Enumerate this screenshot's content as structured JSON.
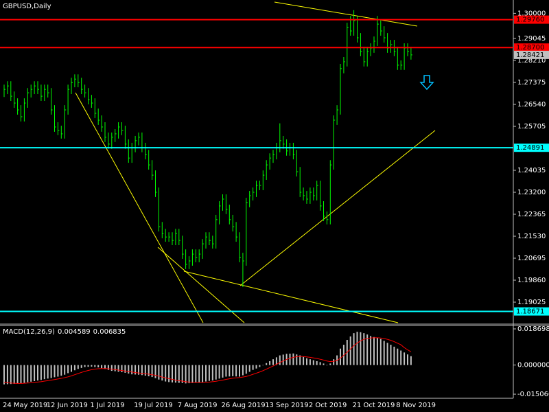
{
  "chart_data": [
    {
      "type": "hlc",
      "title": "GBPUSD,Daily",
      "color": "#00ff00",
      "categories": [
        "24 May 2019",
        null,
        null,
        null,
        null,
        null,
        null,
        null,
        null,
        null,
        null,
        null,
        null,
        "12 Jun 2019",
        null,
        null,
        null,
        null,
        null,
        null,
        null,
        null,
        null,
        null,
        null,
        null,
        "1 Jul 2019",
        null,
        null,
        null,
        null,
        null,
        null,
        null,
        null,
        null,
        null,
        null,
        null,
        "19 Jul 2019",
        null,
        null,
        null,
        null,
        null,
        null,
        null,
        null,
        null,
        null,
        null,
        null,
        "7 Aug 2019",
        null,
        null,
        null,
        null,
        null,
        null,
        null,
        null,
        null,
        null,
        null,
        null,
        "26 Aug 2019",
        null,
        null,
        null,
        null,
        null,
        null,
        null,
        null,
        null,
        null,
        null,
        null,
        "13 Sep 2019",
        null,
        null,
        null,
        null,
        null,
        null,
        null,
        null,
        null,
        null,
        null,
        null,
        "2 Oct 2019",
        null,
        null,
        null,
        null,
        null,
        null,
        null,
        null,
        null,
        null,
        null,
        null,
        "21 Oct 2019",
        null,
        null,
        null,
        null,
        null,
        null,
        null,
        null,
        null,
        null,
        null,
        null,
        "8 Nov 2019",
        null,
        null,
        null,
        null
      ],
      "high": [
        1.2729,
        1.2742,
        1.2742,
        1.2703,
        1.2677,
        1.2651,
        1.2677,
        1.2716,
        1.2729,
        1.2742,
        1.2742,
        1.2729,
        1.2729,
        1.2729,
        1.2716,
        1.2651,
        1.2586,
        1.2573,
        1.2651,
        1.2729,
        1.2755,
        1.2768,
        1.2768,
        1.2755,
        1.2729,
        1.2716,
        1.269,
        1.2677,
        1.2638,
        1.2612,
        1.2586,
        1.2547,
        1.2547,
        1.256,
        1.2586,
        1.2586,
        1.2573,
        1.2521,
        1.2508,
        1.2534,
        1.2547,
        1.2547,
        1.2508,
        1.2481,
        1.2442,
        1.2403,
        1.2338,
        1.2207,
        1.2181,
        1.2168,
        1.2168,
        1.2181,
        1.2181,
        1.2155,
        1.2103,
        1.2077,
        1.2103,
        1.2103,
        1.2103,
        1.2142,
        1.2168,
        1.2168,
        1.2155,
        1.2234,
        1.2286,
        1.2312,
        1.2312,
        1.2273,
        1.2234,
        1.2207,
        1.2168,
        1.209,
        1.2299,
        1.2325,
        1.2338,
        1.2364,
        1.2364,
        1.2403,
        1.2442,
        1.2468,
        1.2481,
        1.2508,
        1.2582,
        1.2534,
        1.2521,
        1.2508,
        1.2508,
        1.2481,
        1.2416,
        1.2338,
        1.2325,
        1.2338,
        1.2338,
        1.2364,
        1.2364,
        1.2286,
        1.2247,
        1.2442,
        1.2612,
        1.2651,
        1.2808,
        1.2834,
        1.2964,
        1.299,
        1.3012,
        1.299,
        1.2925,
        1.2873,
        1.2873,
        1.2886,
        1.2912,
        1.299,
        1.2977,
        1.2951,
        1.2925,
        1.2899,
        1.2899,
        1.2873,
        1.2821,
        1.2886,
        1.2886,
        1.2873
      ],
      "low": [
        1.2682,
        1.2693,
        1.2667,
        1.2641,
        1.2615,
        1.2589,
        1.2589,
        1.2641,
        1.268,
        1.2693,
        1.2693,
        1.2667,
        1.2667,
        1.268,
        1.2615,
        1.255,
        1.2537,
        1.2524,
        1.2524,
        1.2615,
        1.2693,
        1.2719,
        1.2719,
        1.2693,
        1.268,
        1.2654,
        1.2641,
        1.2602,
        1.2576,
        1.255,
        1.2511,
        1.2485,
        1.2485,
        1.2511,
        1.2524,
        1.2537,
        1.2485,
        1.2432,
        1.2432,
        1.2472,
        1.2498,
        1.2472,
        1.2445,
        1.2406,
        1.2367,
        1.2302,
        1.2171,
        1.2145,
        1.2132,
        1.2132,
        1.2119,
        1.2119,
        1.2119,
        1.2067,
        1.2028,
        1.2028,
        1.2041,
        1.2054,
        1.2054,
        1.2067,
        1.2106,
        1.2119,
        1.2106,
        1.2106,
        1.2198,
        1.225,
        1.2237,
        1.2198,
        1.2171,
        1.2132,
        1.2054,
        1.196,
        1.2041,
        1.2263,
        1.2289,
        1.2302,
        1.2328,
        1.2328,
        1.2367,
        1.2406,
        1.2432,
        1.2445,
        1.2472,
        1.2485,
        1.2459,
        1.2459,
        1.2445,
        1.238,
        1.2302,
        1.2289,
        1.2276,
        1.2276,
        1.2289,
        1.2289,
        1.225,
        1.2211,
        1.2198,
        1.2198,
        1.2406,
        1.2576,
        1.2615,
        1.2772,
        1.2798,
        1.2915,
        1.2915,
        1.2889,
        1.2837,
        1.2798,
        1.2798,
        1.2837,
        1.285,
        1.2876,
        1.2915,
        1.2889,
        1.285,
        1.285,
        1.2837,
        1.2785,
        1.2785,
        1.2785,
        1.2837,
        1.2824
      ],
      "close": [
        1.2711,
        1.2724,
        1.2685,
        1.2659,
        1.2633,
        1.2607,
        1.2659,
        1.2698,
        1.2711,
        1.2724,
        1.2711,
        1.2685,
        1.2711,
        1.2698,
        1.2633,
        1.2568,
        1.2555,
        1.2542,
        1.2633,
        1.2711,
        1.2737,
        1.275,
        1.2737,
        1.2711,
        1.2698,
        1.2672,
        1.2659,
        1.262,
        1.2594,
        1.2568,
        1.2529,
        1.2503,
        1.2529,
        1.2542,
        1.2568,
        1.2555,
        1.2503,
        1.245,
        1.249,
        1.2516,
        1.2529,
        1.249,
        1.2463,
        1.2424,
        1.2385,
        1.232,
        1.2189,
        1.2163,
        1.215,
        1.215,
        1.2137,
        1.2163,
        1.2137,
        1.2085,
        1.2046,
        1.2059,
        1.2085,
        1.2072,
        1.2085,
        1.2124,
        1.215,
        1.2137,
        1.2124,
        1.2216,
        1.2268,
        1.2294,
        1.2255,
        1.2216,
        1.2189,
        1.215,
        1.2072,
        1.2059,
        1.2281,
        1.2307,
        1.232,
        1.2346,
        1.2346,
        1.2385,
        1.2424,
        1.245,
        1.2463,
        1.249,
        1.2516,
        1.2503,
        1.2477,
        1.249,
        1.2463,
        1.2398,
        1.232,
        1.2307,
        1.2294,
        1.232,
        1.2307,
        1.2346,
        1.2268,
        1.2229,
        1.2216,
        1.2424,
        1.2594,
        1.2633,
        1.279,
        1.2816,
        1.2946,
        1.2933,
        1.2972,
        1.2907,
        1.2855,
        1.2816,
        1.2855,
        1.2868,
        1.2894,
        1.2959,
        1.2933,
        1.2907,
        1.2868,
        1.2881,
        1.2855,
        1.2803,
        1.2803,
        1.2868,
        1.2855,
        1.28421
      ],
      "last_price": 1.28421,
      "ylim": [
        1.18242,
        1.30506
      ],
      "yticks": [
        {
          "value": 1.3,
          "label": "1.30000"
        },
        1.29045,
        {
          "value": 1.2821,
          "label": "1.28210"
        },
        1.27375,
        {
          "value": 1.2654,
          "label": "1.26540"
        },
        1.25705,
        1.24035,
        {
          "value": 1.232,
          "label": "1.23200"
        },
        1.22365,
        {
          "value": 1.2153,
          "label": "1.21530"
        },
        1.20695,
        {
          "value": 1.1986,
          "label": "1.19860"
        },
        1.19025
      ],
      "levels": [
        {
          "value": 1.2976,
          "label": "1.29760",
          "color": "#ff0000"
        },
        {
          "value": 1.287,
          "label": "1.28700",
          "color": "#ff0000"
        },
        {
          "value": 1.24891,
          "color": "#00ffff"
        },
        {
          "value": 1.18671,
          "color": "#00ffff"
        }
      ]
    },
    {
      "type": "macd",
      "title": "MACD(12,26,9)",
      "histogram": {
        "color": "#c0c0c0",
        "values": [
          -0.01,
          -0.0099,
          -0.0098,
          -0.0097,
          -0.0096,
          -0.0095,
          -0.0092,
          -0.0089,
          -0.0086,
          -0.0083,
          -0.008,
          -0.0077,
          -0.0073,
          -0.007,
          -0.0067,
          -0.0063,
          -0.006,
          -0.0055,
          -0.005,
          -0.0042,
          -0.0035,
          -0.0027,
          -0.002,
          -0.0015,
          -0.001,
          -0.0009,
          -0.0008,
          -0.001,
          -0.0012,
          -0.0016,
          -0.002,
          -0.0025,
          -0.003,
          -0.0032,
          -0.0035,
          -0.0037,
          -0.004,
          -0.0044,
          -0.0048,
          -0.0049,
          -0.005,
          -0.0052,
          -0.0055,
          -0.0058,
          -0.0062,
          -0.0068,
          -0.0075,
          -0.008,
          -0.0085,
          -0.0088,
          -0.009,
          -0.0091,
          -0.0092,
          -0.0093,
          -0.0095,
          -0.0094,
          -0.0093,
          -0.0092,
          -0.009,
          -0.0088,
          -0.0085,
          -0.0082,
          -0.008,
          -0.0075,
          -0.007,
          -0.0065,
          -0.006,
          -0.0059,
          -0.0058,
          -0.0059,
          -0.006,
          -0.0053,
          -0.0045,
          -0.0035,
          -0.0025,
          -0.0018,
          -0.001,
          0.0,
          0.001,
          0.002,
          0.003,
          0.004,
          0.005,
          0.0054,
          0.0058,
          0.0059,
          0.006,
          0.0055,
          0.005,
          0.0042,
          0.0035,
          0.003,
          0.0025,
          0.002,
          0.0015,
          0.0008,
          0.0,
          0.0008,
          0.003,
          0.005,
          0.0085,
          0.0105,
          0.013,
          0.0148,
          0.0165,
          0.0172,
          0.017,
          0.0165,
          0.0158,
          0.015,
          0.0145,
          0.0142,
          0.0135,
          0.0125,
          0.0115,
          0.0105,
          0.0095,
          0.0085,
          0.0075,
          0.0065,
          0.0055,
          0.004589
        ]
      },
      "signal": {
        "color": "#ff0000",
        "values": [
          -0.009,
          -0.0092,
          -0.0093,
          -0.0094,
          -0.0095,
          -0.0095,
          -0.0094,
          -0.0093,
          -0.0092,
          -0.009,
          -0.0088,
          -0.0086,
          -0.0083,
          -0.0081,
          -0.0078,
          -0.0075,
          -0.0072,
          -0.0069,
          -0.0065,
          -0.0061,
          -0.0056,
          -0.005,
          -0.0044,
          -0.0038,
          -0.0033,
          -0.0028,
          -0.0024,
          -0.0021,
          -0.0019,
          -0.0018,
          -0.0018,
          -0.0019,
          -0.0021,
          -0.0023,
          -0.0026,
          -0.0028,
          -0.0031,
          -0.0033,
          -0.0036,
          -0.0039,
          -0.0041,
          -0.0043,
          -0.0045,
          -0.0047,
          -0.005,
          -0.0053,
          -0.0057,
          -0.0062,
          -0.0066,
          -0.007,
          -0.0074,
          -0.0078,
          -0.0081,
          -0.0083,
          -0.0086,
          -0.0088,
          -0.0089,
          -0.009,
          -0.009,
          -0.009,
          -0.0089,
          -0.0088,
          -0.0086,
          -0.0084,
          -0.0081,
          -0.0078,
          -0.0074,
          -0.0071,
          -0.0068,
          -0.0066,
          -0.0065,
          -0.0062,
          -0.0059,
          -0.0054,
          -0.0048,
          -0.0042,
          -0.0036,
          -0.0029,
          -0.0021,
          -0.0013,
          -0.0005,
          0.0004,
          0.0013,
          0.0021,
          0.0029,
          0.0035,
          0.004,
          0.0043,
          0.0045,
          0.0044,
          0.0042,
          0.004,
          0.0037,
          0.0034,
          0.003,
          0.0026,
          0.0021,
          0.0018,
          0.0019,
          0.0024,
          0.0036,
          0.005,
          0.0066,
          0.0083,
          0.01,
          0.0114,
          0.0125,
          0.0133,
          0.0138,
          0.014,
          0.0141,
          0.0141,
          0.014,
          0.0137,
          0.0133,
          0.0128,
          0.0121,
          0.0113,
          0.0105,
          0.009,
          0.0079,
          0.006835
        ]
      },
      "ylim": [
        -0.01718,
        0.02011
      ],
      "yticks": [
        0.018698,
        {
          "value": 0,
          "label": "0.000000"
        },
        {
          "value": -0.01506,
          "label": "-0.015060"
        }
      ]
    }
  ]
}
